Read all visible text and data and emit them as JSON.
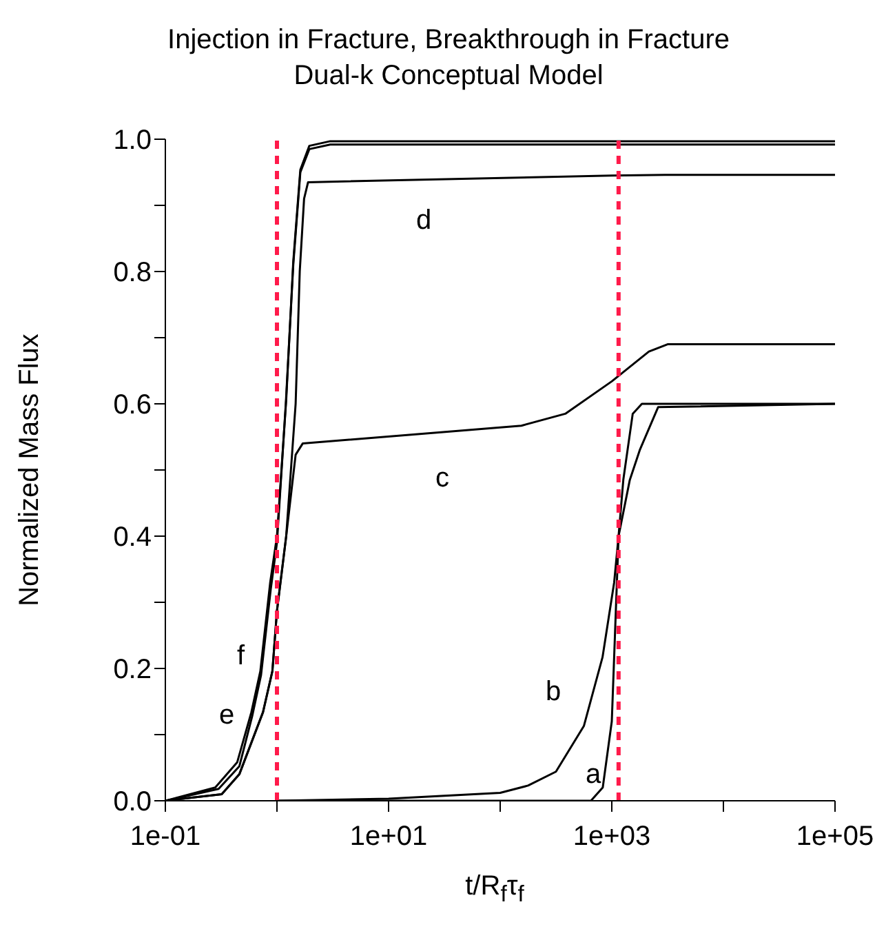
{
  "chart_data": {
    "type": "line",
    "title": "Injection in Fracture, Breakthrough in Fracture",
    "subtitle": "Dual-k Conceptual Model",
    "xlabel": "t/R$_{f}$τ$_{f}$",
    "ylabel": "Normalized Mass Flux",
    "log": "x",
    "xlim": [
      0.1,
      100000
    ],
    "ylim": [
      0,
      1
    ],
    "xticks": [
      {
        "value": 0.1,
        "label": "1e-01"
      },
      {
        "value": 1,
        "label": null
      },
      {
        "value": 10,
        "label": "1e+01"
      },
      {
        "value": 100,
        "label": null
      },
      {
        "value": 1000,
        "label": "1e+03"
      },
      {
        "value": 10000,
        "label": null
      },
      {
        "value": 100000,
        "label": "1e+05"
      }
    ],
    "yticks": [
      {
        "value": 0,
        "label": "0.0"
      },
      {
        "value": 0.1,
        "label": null
      },
      {
        "value": 0.2,
        "label": "0.2"
      },
      {
        "value": 0.3,
        "label": null
      },
      {
        "value": 0.4,
        "label": "0.4"
      },
      {
        "value": 0.5,
        "label": null
      },
      {
        "value": 0.6,
        "label": "0.6"
      },
      {
        "value": 0.7,
        "label": null
      },
      {
        "value": 0.8,
        "label": "0.8"
      },
      {
        "value": 0.9,
        "label": null
      },
      {
        "value": 1,
        "label": "1.0"
      }
    ],
    "marker": "none",
    "line_style": "solid",
    "series": [
      {
        "color": "#000000",
        "x": [
          0.1,
          0.28,
          0.44,
          0.59,
          0.71,
          0.87,
          1,
          1.21,
          1.4,
          1.62,
          1.95,
          3,
          100,
          100000
        ],
        "values": [
          0,
          0.02,
          0.058,
          0.134,
          0.196,
          0.33,
          0.4,
          0.606,
          0.815,
          0.954,
          0.99,
          0.997,
          0.997,
          0.997
        ]
      },
      {
        "color": "#000000",
        "x": [
          0.1,
          0.3,
          0.46,
          0.6,
          0.72,
          0.88,
          1,
          1.2,
          1.4,
          1.62,
          1.95,
          3,
          100,
          100000
        ],
        "values": [
          0,
          0.018,
          0.052,
          0.128,
          0.19,
          0.32,
          0.39,
          0.6,
          0.81,
          0.95,
          0.985,
          0.992,
          0.992,
          0.992
        ]
      },
      {
        "color": "#000000",
        "x": [
          0.1,
          0.32,
          0.46,
          0.75,
          0.91,
          1,
          1.21,
          1.47,
          1.7,
          155,
          383,
          1000,
          2150,
          3160,
          100000
        ],
        "values": [
          0,
          0.01,
          0.04,
          0.134,
          0.196,
          0.287,
          0.4,
          0.523,
          0.54,
          0.567,
          0.585,
          0.634,
          0.679,
          0.69,
          0.69
        ]
      },
      {
        "color": "#000000",
        "x": [
          0.1,
          0.32,
          0.46,
          0.75,
          0.91,
          1,
          1.21,
          1.47,
          1.6,
          1.75,
          1.9,
          1000,
          3000,
          100000
        ],
        "values": [
          0,
          0.01,
          0.04,
          0.134,
          0.196,
          0.287,
          0.4,
          0.6,
          0.8,
          0.91,
          0.935,
          0.945,
          0.946,
          0.946
        ]
      },
      {
        "color": "#000000",
        "x": [
          1,
          10,
          100,
          178,
          316,
          562,
          826,
          1050,
          1150,
          1450,
          1780,
          2600,
          100000
        ],
        "values": [
          0,
          0.003,
          0.012,
          0.023,
          0.044,
          0.113,
          0.217,
          0.33,
          0.4,
          0.485,
          0.53,
          0.595,
          0.6
        ]
      },
      {
        "color": "#000000",
        "x": [
          1,
          650,
          830,
          1000,
          1150,
          1270,
          1540,
          1860,
          100000
        ],
        "values": [
          0,
          0,
          0.02,
          0.12,
          0.4,
          0.486,
          0.585,
          0.6,
          0.6
        ]
      }
    ],
    "ref_lines": [
      {
        "axis": "x",
        "value": 1,
        "color": "#ff1a4a",
        "line_style": "dashed"
      },
      {
        "axis": "x",
        "value": 1150,
        "color": "#ff1a4a",
        "line_style": "dashed"
      }
    ],
    "annotations": [
      "a",
      "b",
      "c",
      "d",
      "e",
      "f"
    ]
  }
}
